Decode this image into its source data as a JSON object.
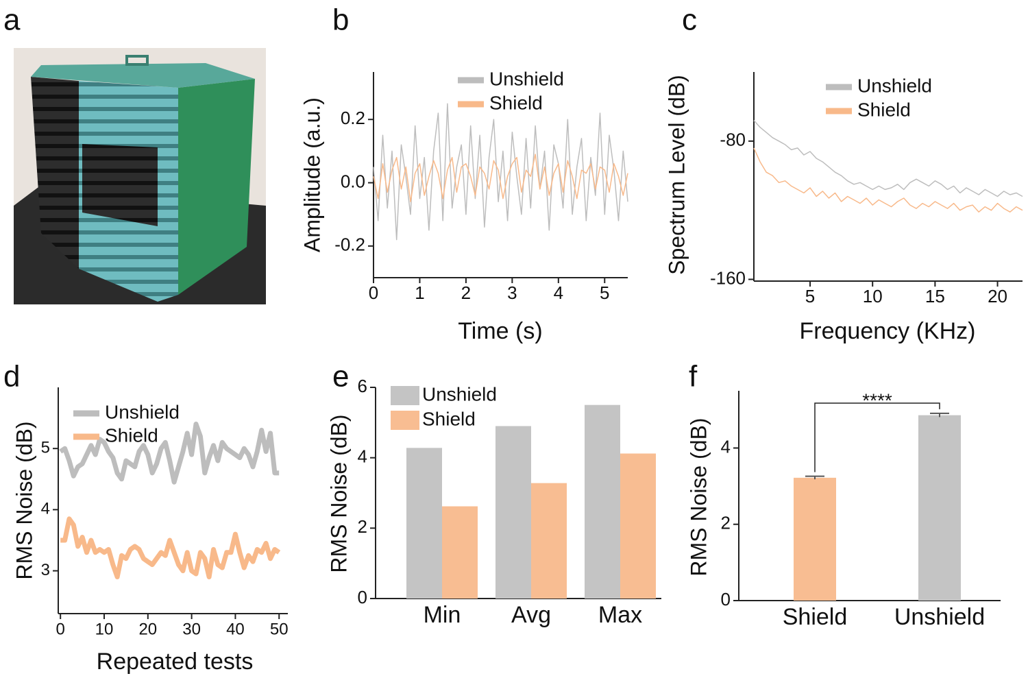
{
  "photo": {
    "label": "a"
  },
  "chart_data": [
    {
      "type": "line",
      "panel": "b",
      "ylabel": "Amplitude (a.u.)",
      "xlabel": "Time  (s)",
      "xlim": [
        0,
        5.5
      ],
      "xticks": [
        0,
        1,
        2,
        3,
        4,
        5
      ],
      "ylim": [
        -0.3,
        0.35
      ],
      "yticks": [
        -0.2,
        {
          "value": 0,
          "label": "0.0"
        },
        0.2
      ],
      "line_width": 1.5,
      "x": [
        0,
        0.1,
        0.2,
        0.3,
        0.4,
        0.5,
        0.6,
        0.7,
        0.8,
        0.9,
        1,
        1.1,
        1.2,
        1.3,
        1.4,
        1.5,
        1.6,
        1.7,
        1.8,
        1.9,
        2,
        2.1,
        2.2,
        2.3,
        2.4,
        2.5,
        2.6,
        2.7,
        2.8,
        2.9,
        3,
        3.1,
        3.2,
        3.3,
        3.4,
        3.5,
        3.6,
        3.7,
        3.8,
        3.9,
        4,
        4.1,
        4.2,
        4.3,
        4.4,
        4.5,
        4.6,
        4.7,
        4.8,
        4.9,
        5,
        5.1,
        5.2,
        5.3,
        5.4,
        5.5
      ],
      "series": [
        {
          "name": "Unshield",
          "color": "#bdbdbd",
          "values": [
            0.05,
            -0.12,
            0.15,
            -0.08,
            0.1,
            -0.18,
            0.12,
            0.02,
            -0.1,
            0.18,
            -0.05,
            0.08,
            -0.15,
            0.1,
            0.22,
            -0.12,
            0.25,
            -0.08,
            0.05,
            0.12,
            -0.1,
            0.18,
            -0.05,
            0.15,
            -0.14,
            0.08,
            0.2,
            -0.06,
            0.1,
            -0.12,
            0.16,
            0.02,
            -0.1,
            0.14,
            -0.08,
            0.18,
            -0.02,
            0.1,
            -0.15,
            0.12,
            0.06,
            -0.08,
            0.2,
            -0.1,
            0.05,
            0.14,
            -0.12,
            0.08,
            -0.04,
            0.22,
            -0.1,
            0.15,
            0.04,
            -0.12,
            0.1,
            -0.06
          ]
        },
        {
          "name": "Shield",
          "color": "#f8b98a",
          "values": [
            0.02,
            -0.05,
            0.06,
            -0.03,
            0.04,
            0.08,
            -0.02,
            0.05,
            -0.06,
            0.03,
            0.06,
            -0.04,
            0.02,
            0.07,
            0.03,
            -0.05,
            0.04,
            0.08,
            -0.03,
            0.05,
            0.06,
            0.02,
            -0.04,
            0.05,
            0.03,
            -0.02,
            0.07,
            0.04,
            -0.05,
            0.02,
            0.06,
            0.08,
            -0.03,
            0.04,
            0.02,
            0.09,
            -0.02,
            0.05,
            -0.04,
            0.03,
            0.06,
            -0.03,
            0.07,
            0.02,
            -0.05,
            0.04,
            0.03,
            0.06,
            -0.02,
            0.05,
            0.04,
            -0.03,
            0.06,
            0.02,
            -0.04,
            0.03
          ]
        }
      ]
    },
    {
      "type": "line",
      "panel": "c",
      "ylabel": "Spectrum Level (dB)",
      "xlabel": "Frequency (KHz)",
      "xlim": [
        0.5,
        22
      ],
      "xticks": [
        5,
        10,
        15,
        20
      ],
      "ylim": [
        -161,
        -40
      ],
      "yticks": [
        -160,
        -80
      ],
      "line_width": 1.5,
      "x": [
        0.5,
        1,
        1.5,
        2,
        2.5,
        3,
        3.5,
        4,
        4.5,
        5,
        5.5,
        6,
        6.5,
        7,
        7.5,
        8,
        8.5,
        9,
        9.5,
        10,
        10.5,
        11,
        11.5,
        12,
        12.5,
        13,
        13.5,
        14,
        14.5,
        15,
        15.5,
        16,
        16.5,
        17,
        17.5,
        18,
        18.5,
        19,
        19.5,
        20,
        20.5,
        21,
        21.5,
        22
      ],
      "series": [
        {
          "name": "Unshield",
          "color": "#bdbdbd",
          "values": [
            -68,
            -72,
            -75,
            -78,
            -80,
            -82,
            -85,
            -84,
            -88,
            -86,
            -90,
            -92,
            -95,
            -98,
            -100,
            -103,
            -105,
            -104,
            -106,
            -108,
            -106,
            -108,
            -107,
            -105,
            -108,
            -104,
            -102,
            -104,
            -106,
            -103,
            -105,
            -108,
            -106,
            -110,
            -107,
            -109,
            -111,
            -108,
            -110,
            -112,
            -109,
            -111,
            -110,
            -112
          ]
        },
        {
          "name": "Shield",
          "color": "#f8b98a",
          "values": [
            -84,
            -92,
            -98,
            -100,
            -104,
            -103,
            -106,
            -108,
            -110,
            -107,
            -112,
            -109,
            -113,
            -110,
            -115,
            -112,
            -114,
            -116,
            -113,
            -117,
            -114,
            -116,
            -118,
            -115,
            -113,
            -117,
            -119,
            -116,
            -118,
            -115,
            -117,
            -119,
            -116,
            -120,
            -118,
            -117,
            -121,
            -118,
            -120,
            -116,
            -119,
            -121,
            -118,
            -120
          ]
        }
      ]
    },
    {
      "type": "line",
      "panel": "d",
      "ylabel": "RMS Noise (dB)",
      "xlabel": "Repeated tests",
      "xlim": [
        -0.5,
        52
      ],
      "xticks": [
        0,
        10,
        20,
        30,
        40,
        50
      ],
      "ylim": [
        2.3,
        6
      ],
      "yticks": [
        3,
        4,
        5
      ],
      "line_width": 7,
      "x": [
        0,
        1,
        2,
        3,
        4,
        5,
        6,
        7,
        8,
        9,
        10,
        11,
        12,
        13,
        14,
        15,
        16,
        17,
        18,
        19,
        20,
        21,
        22,
        23,
        24,
        25,
        26,
        27,
        28,
        29,
        30,
        31,
        32,
        33,
        34,
        35,
        36,
        37,
        38,
        39,
        40,
        41,
        42,
        43,
        44,
        45,
        46,
        47,
        48,
        49,
        50
      ],
      "series": [
        {
          "name": "Unshield",
          "color": "#bdbdbd",
          "values": [
            4.95,
            5.0,
            4.8,
            4.55,
            4.7,
            4.75,
            4.9,
            5.05,
            4.9,
            5.15,
            5.1,
            4.95,
            4.85,
            4.6,
            4.5,
            4.8,
            4.75,
            4.7,
            4.95,
            5.05,
            4.9,
            4.6,
            4.75,
            5.0,
            5.1,
            4.8,
            4.45,
            4.7,
            4.95,
            5.25,
            4.9,
            5.4,
            5.2,
            4.6,
            4.85,
            5.05,
            4.8,
            5.1,
            5.0,
            4.95,
            4.9,
            4.85,
            5.0,
            4.9,
            4.7,
            4.95,
            5.3,
            4.95,
            5.25,
            4.6,
            4.6
          ]
        },
        {
          "name": "Shield",
          "color": "#f8b98a",
          "values": [
            3.5,
            3.5,
            3.85,
            3.75,
            3.4,
            3.55,
            3.3,
            3.5,
            3.3,
            3.35,
            3.3,
            3.35,
            3.1,
            2.9,
            3.25,
            3.2,
            3.35,
            3.4,
            3.35,
            3.2,
            3.15,
            3.1,
            3.2,
            3.3,
            3.25,
            3.5,
            3.3,
            3.1,
            3.0,
            3.3,
            3.0,
            2.95,
            3.3,
            3.2,
            2.9,
            3.35,
            3.1,
            3.05,
            3.3,
            3.3,
            3.6,
            3.3,
            3.05,
            3.25,
            3.15,
            3.35,
            3.3,
            3.45,
            3.2,
            3.35,
            3.3
          ]
        }
      ]
    },
    {
      "type": "bar",
      "panel": "e",
      "ylabel": "RMS Noise (dB)",
      "categories": [
        "Min",
        "Avg",
        "Max"
      ],
      "ylim": [
        0,
        6
      ],
      "yticks": [
        0,
        2,
        4,
        6
      ],
      "series": [
        {
          "name": "Unshield",
          "color": "#c4c4c4",
          "values": [
            4.28,
            4.9,
            5.5
          ]
        },
        {
          "name": "Shield",
          "color": "#f8bd92",
          "values": [
            2.62,
            3.28,
            4.12
          ]
        }
      ]
    },
    {
      "type": "errorbar",
      "panel": "f",
      "ylabel": "RMS Noise (dB)",
      "categories": [
        "Shield",
        "Unshield"
      ],
      "values": [
        3.22,
        4.86
      ],
      "errors": [
        0.04,
        0.05
      ],
      "colors": [
        "#f8bd92",
        "#c4c4c4"
      ],
      "ylim": [
        0,
        5.5
      ],
      "yticks": [
        0,
        2,
        4
      ],
      "annotation": "****"
    }
  ]
}
